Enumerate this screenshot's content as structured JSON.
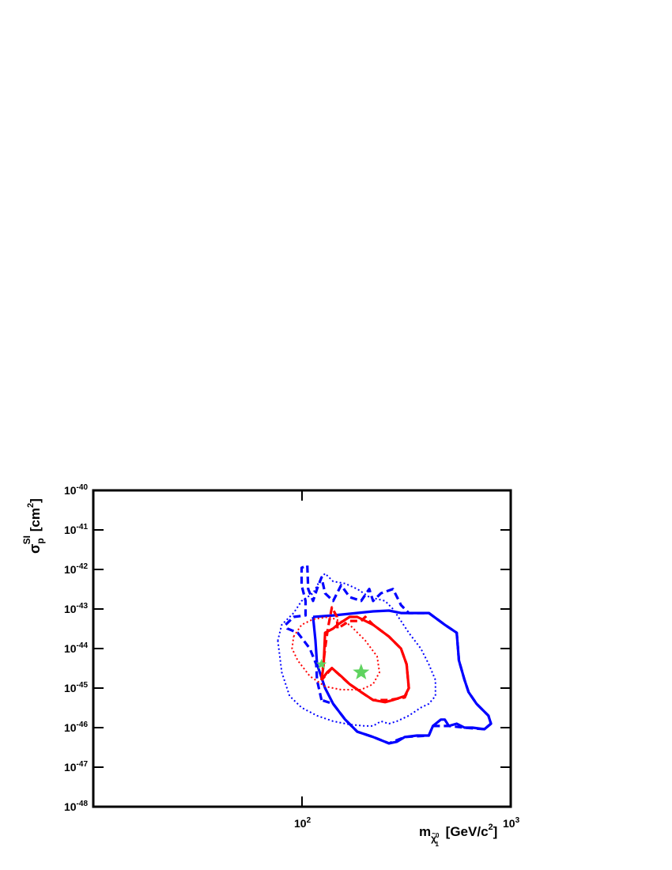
{
  "chart_data": {
    "type": "line",
    "xlabel": [
      "m",
      "χ̃",
      "0",
      "1",
      " [GeV/c",
      "2",
      "]"
    ],
    "ylabel": [
      "σ",
      "p",
      "SI",
      " [cm",
      "2",
      "]"
    ],
    "xscale": "log",
    "yscale": "log",
    "xlim": [
      10,
      1000
    ],
    "ylim": [
      1e-48,
      1e-40
    ],
    "xticks": [
      {
        "value": 100,
        "label": "10",
        "exp": "2"
      },
      {
        "value": 1000,
        "label": "10",
        "exp": "3"
      }
    ],
    "yticks": [
      {
        "value": 1e-48,
        "label": "10",
        "exp": "-48"
      },
      {
        "value": 1e-47,
        "label": "10",
        "exp": "-47"
      },
      {
        "value": 1e-46,
        "label": "10",
        "exp": "-46"
      },
      {
        "value": 1e-45,
        "label": "10",
        "exp": "-45"
      },
      {
        "value": 1e-44,
        "label": "10",
        "exp": "-44"
      },
      {
        "value": 1e-43,
        "label": "10",
        "exp": "-43"
      },
      {
        "value": 1e-42,
        "label": "10",
        "exp": "-42"
      },
      {
        "value": 1e-41,
        "label": "10",
        "exp": "-41"
      },
      {
        "value": 1e-40,
        "label": "10",
        "exp": "-40"
      }
    ],
    "series": [
      {
        "color": "#0000ff",
        "style": "solid",
        "x": [
          113,
          116,
          118,
          129,
          141,
          161,
          184,
          219,
          261,
          285,
          311,
          355,
          405,
          424,
          463,
          483,
          505,
          551,
          601,
          656,
          748,
          804,
          782,
          686,
          628,
          601,
          565,
          551,
          483,
          405,
          340,
          298,
          261,
          219,
          169,
          141,
          113
        ],
        "y": [
          6.3e-44,
          1.6e-44,
          4e-45,
          1e-45,
          4e-46,
          1.6e-46,
          7.9e-47,
          5.8e-47,
          4e-47,
          4.4e-47,
          5.8e-47,
          6.3e-47,
          6.3e-47,
          1.1e-46,
          1.6e-46,
          1.6e-46,
          1.1e-46,
          1.26e-46,
          1e-46,
          1e-46,
          9.1e-47,
          1.26e-46,
          2e-46,
          4e-46,
          7.9e-46,
          1.6e-45,
          5e-45,
          2.5e-44,
          4e-44,
          7.9e-44,
          7.9e-44,
          7.9e-44,
          9.1e-44,
          8.7e-44,
          7.6e-44,
          6.9e-44,
          6.3e-44
        ]
      },
      {
        "color": "#0000ff",
        "style": "dashed",
        "x": [
          124,
          118,
          117,
          109,
          95.4,
          85,
          83.5,
          91.2,
          104,
          104,
          99.6,
          99.6,
          106,
          107,
          113,
          118,
          124,
          129,
          141,
          154,
          169,
          192,
          210,
          219,
          239,
          273,
          298,
          325,
          405,
          483,
          551,
          565,
          601,
          628,
          686,
          782,
          804,
          748,
          601,
          505,
          424,
          405,
          311,
          261,
          219,
          184,
          161,
          141,
          124
        ],
        "y": [
          5e-46,
          1.6e-45,
          4e-45,
          1e-44,
          2.5e-44,
          3.2e-44,
          4e-44,
          6.3e-44,
          6.9e-44,
          1.6e-43,
          4e-43,
          1.1e-42,
          1.26e-42,
          3.2e-43,
          1.6e-43,
          3.2e-43,
          6.3e-43,
          2.5e-43,
          1.6e-43,
          4e-43,
          2e-43,
          1.6e-43,
          3.2e-43,
          1.6e-43,
          2.5e-43,
          3.2e-43,
          1.26e-43,
          7.9e-44,
          7.9e-44,
          4e-44,
          2.5e-44,
          5e-45,
          1.6e-45,
          7.9e-46,
          4e-46,
          2e-46,
          1.26e-46,
          9.1e-47,
          1e-46,
          1.1e-46,
          1.1e-46,
          6.3e-47,
          5.8e-47,
          4e-47,
          5.8e-47,
          7.9e-47,
          1.6e-46,
          4e-46,
          5e-46
        ]
      },
      {
        "color": "#0000ff",
        "style": "dotted",
        "x": [
          76.6,
          80.0,
          87.2,
          99.6,
          118,
          141,
          169,
          201,
          219,
          239,
          261,
          285,
          325,
          371,
          405,
          436,
          436,
          405,
          371,
          325,
          298,
          273,
          250,
          210,
          184,
          161,
          141,
          129,
          124,
          113,
          99.6,
          91.2,
          80.0,
          76.6
        ],
        "y": [
          1.6e-44,
          2.5e-45,
          6.3e-46,
          3.2e-46,
          2e-46,
          1.45e-46,
          1.2e-46,
          1.1e-46,
          1.1e-46,
          1.45e-46,
          1.26e-46,
          1.45e-46,
          2e-46,
          3.2e-46,
          4e-46,
          6.3e-46,
          1.6e-45,
          4e-45,
          1e-44,
          2.5e-44,
          5e-44,
          1e-43,
          1.6e-43,
          2e-43,
          3.2e-43,
          4.4e-43,
          5e-43,
          7.9e-43,
          6.3e-43,
          2.5e-43,
          1.6e-43,
          7.9e-44,
          4e-44,
          1.6e-44
        ]
      },
      {
        "color": "#ff0000",
        "style": "solid",
        "x": [
          124,
          127,
          129,
          141,
          148,
          169,
          184,
          219,
          261,
          298,
          317,
          325,
          311,
          273,
          250,
          219,
          192,
          169,
          154,
          139,
          132,
          124
        ],
        "y": [
          1.6e-45,
          4e-45,
          2.5e-44,
          3.2e-44,
          4e-44,
          6.3e-44,
          6.3e-44,
          4e-44,
          2e-44,
          1e-44,
          4e-45,
          1e-45,
          6.3e-46,
          5e-46,
          4.4e-46,
          5e-46,
          7.9e-46,
          1.26e-45,
          2e-45,
          3.2e-45,
          2.5e-45,
          1.6e-45
        ]
      },
      {
        "color": "#ff0000",
        "style": "dashed",
        "x": [
          124,
          129,
          133,
          139,
          147,
          148,
          169,
          192,
          201,
          219,
          261,
          298,
          317,
          325,
          311,
          261,
          219,
          192,
          169,
          139,
          124
        ],
        "y": [
          1.6e-45,
          1e-44,
          3.2e-44,
          1.1e-43,
          6.3e-44,
          3.2e-44,
          5e-44,
          5e-44,
          6.3e-44,
          4e-44,
          2e-44,
          1e-44,
          4e-45,
          1e-45,
          5.8e-46,
          5e-46,
          5e-46,
          7.9e-46,
          1.26e-45,
          3.2e-45,
          1.6e-45
        ]
      },
      {
        "color": "#ff0000",
        "style": "dotted",
        "x": [
          91.2,
          99.6,
          113,
          135,
          169,
          201,
          229,
          235,
          219,
          192,
          154,
          129,
          109,
          95.4,
          89.6,
          91.2
        ],
        "y": [
          2e-44,
          4e-44,
          5.5e-44,
          6.3e-44,
          4e-44,
          1.6e-44,
          6.3e-45,
          2.5e-45,
          1.26e-45,
          9.1e-46,
          9.1e-46,
          1.1e-45,
          2e-45,
          5e-45,
          1e-44,
          2e-44
        ]
      },
      {
        "color": "#5fd35f",
        "marker": "star",
        "marker_size": 11,
        "x": [
          192
        ],
        "y": [
          2.5e-45
        ]
      },
      {
        "color": "#5fd35f",
        "marker": "star",
        "marker_size": 7,
        "x": [
          124
        ],
        "y": [
          4e-45
        ]
      }
    ]
  }
}
